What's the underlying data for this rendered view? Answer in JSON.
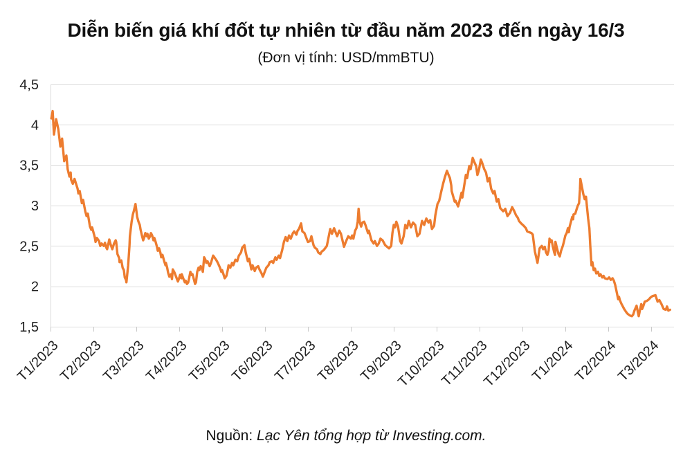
{
  "page": {
    "title": "Diễn biến giá khí đốt tự nhiên từ đầu năm 2023 đến ngày 16/3",
    "subtitle": "(Đơn vị tính: USD/mmBTU)",
    "source_prefix": "Nguồn: ",
    "source_text": "Lạc Yên tổng hợp từ Investing.com."
  },
  "chart_data": {
    "type": "line",
    "title": "Diễn biến giá khí đốt tự nhiên từ đầu năm 2023 đến ngày 16/3",
    "subtitle": "(Đơn vị tính: USD/mmBTU)",
    "unit": "USD/mmBTU",
    "xlabel": "",
    "ylabel": "",
    "x_unit": "months since Jan 2023 (0 = T1/2023, fractional = day within month)",
    "ylim": [
      1.5,
      4.5
    ],
    "xlim": [
      0,
      14.53
    ],
    "grid": true,
    "legend": "none",
    "line_color": "#ED7C2F",
    "grid_color": "#DCDCDC",
    "tick_color": "#C9C9C9",
    "text_color": "#1F1F1F",
    "x_ticks": [
      "T1/2023",
      "T2/2023",
      "T3/2023",
      "T4/2023",
      "T5/2023",
      "T6/2023",
      "T7/2023",
      "T8/2023",
      "T9/2023",
      "T10/2023",
      "T11/2023",
      "T12/2023",
      "T1/2024",
      "T2/2024",
      "T3/2024"
    ],
    "y_ticks": [
      {
        "value": 4.5,
        "label": "4,5"
      },
      {
        "value": 4.0,
        "label": "4"
      },
      {
        "value": 3.5,
        "label": "3,5"
      },
      {
        "value": 3.0,
        "label": "3"
      },
      {
        "value": 2.5,
        "label": "2,5"
      },
      {
        "value": 2.0,
        "label": "2"
      },
      {
        "value": 1.5,
        "label": "1,5"
      }
    ],
    "points": [
      [
        0.02,
        4.08
      ],
      [
        0.05,
        4.17
      ],
      [
        0.08,
        3.88
      ],
      [
        0.13,
        4.07
      ],
      [
        0.18,
        3.95
      ],
      [
        0.23,
        3.73
      ],
      [
        0.27,
        3.83
      ],
      [
        0.32,
        3.55
      ],
      [
        0.37,
        3.62
      ],
      [
        0.4,
        3.45
      ],
      [
        0.44,
        3.36
      ],
      [
        0.47,
        3.41
      ],
      [
        0.48,
        3.32
      ],
      [
        0.52,
        3.27
      ],
      [
        0.56,
        3.33
      ],
      [
        0.63,
        3.21
      ],
      [
        0.65,
        3.15
      ],
      [
        0.68,
        3.18
      ],
      [
        0.73,
        3.03
      ],
      [
        0.76,
        3.07
      ],
      [
        0.81,
        2.93
      ],
      [
        0.84,
        2.87
      ],
      [
        0.87,
        2.9
      ],
      [
        0.92,
        2.74
      ],
      [
        0.95,
        2.7
      ],
      [
        0.97,
        2.73
      ],
      [
        1.03,
        2.61
      ],
      [
        1.05,
        2.55
      ],
      [
        1.08,
        2.6
      ],
      [
        1.13,
        2.56
      ],
      [
        1.16,
        2.5
      ],
      [
        1.19,
        2.53
      ],
      [
        1.24,
        2.5
      ],
      [
        1.27,
        2.54
      ],
      [
        1.3,
        2.48
      ],
      [
        1.32,
        2.46
      ],
      [
        1.35,
        2.53
      ],
      [
        1.37,
        2.58
      ],
      [
        1.4,
        2.52
      ],
      [
        1.44,
        2.46
      ],
      [
        1.48,
        2.53
      ],
      [
        1.52,
        2.57
      ],
      [
        1.53,
        2.55
      ],
      [
        1.56,
        2.4
      ],
      [
        1.6,
        2.35
      ],
      [
        1.61,
        2.3
      ],
      [
        1.65,
        2.32
      ],
      [
        1.68,
        2.23
      ],
      [
        1.71,
        2.2
      ],
      [
        1.73,
        2.11
      ],
      [
        1.76,
        2.08
      ],
      [
        1.77,
        2.05
      ],
      [
        1.81,
        2.26
      ],
      [
        1.84,
        2.5
      ],
      [
        1.85,
        2.62
      ],
      [
        1.89,
        2.8
      ],
      [
        1.92,
        2.89
      ],
      [
        1.94,
        2.93
      ],
      [
        1.98,
        3.02
      ],
      [
        2.02,
        2.86
      ],
      [
        2.05,
        2.8
      ],
      [
        2.08,
        2.76
      ],
      [
        2.1,
        2.7
      ],
      [
        2.13,
        2.63
      ],
      [
        2.16,
        2.57
      ],
      [
        2.18,
        2.6
      ],
      [
        2.21,
        2.66
      ],
      [
        2.24,
        2.62
      ],
      [
        2.26,
        2.65
      ],
      [
        2.29,
        2.59
      ],
      [
        2.32,
        2.62
      ],
      [
        2.34,
        2.66
      ],
      [
        2.37,
        2.63
      ],
      [
        2.4,
        2.57
      ],
      [
        2.42,
        2.6
      ],
      [
        2.45,
        2.55
      ],
      [
        2.48,
        2.49
      ],
      [
        2.5,
        2.44
      ],
      [
        2.53,
        2.47
      ],
      [
        2.56,
        2.42
      ],
      [
        2.58,
        2.36
      ],
      [
        2.61,
        2.39
      ],
      [
        2.65,
        2.31
      ],
      [
        2.68,
        2.26
      ],
      [
        2.69,
        2.29
      ],
      [
        2.72,
        2.23
      ],
      [
        2.74,
        2.17
      ],
      [
        2.77,
        2.12
      ],
      [
        2.81,
        2.15
      ],
      [
        2.83,
        2.09
      ],
      [
        2.85,
        2.21
      ],
      [
        2.89,
        2.17
      ],
      [
        2.94,
        2.1
      ],
      [
        2.97,
        2.06
      ],
      [
        2.99,
        2.09
      ],
      [
        3.02,
        2.14
      ],
      [
        3.05,
        2.1
      ],
      [
        3.06,
        2.15
      ],
      [
        3.1,
        2.09
      ],
      [
        3.13,
        2.05
      ],
      [
        3.15,
        2.07
      ],
      [
        3.18,
        2.03
      ],
      [
        3.21,
        2.05
      ],
      [
        3.23,
        2.1
      ],
      [
        3.26,
        2.18
      ],
      [
        3.29,
        2.14
      ],
      [
        3.31,
        2.15
      ],
      [
        3.34,
        2.09
      ],
      [
        3.37,
        2.03
      ],
      [
        3.39,
        2.05
      ],
      [
        3.42,
        2.18
      ],
      [
        3.45,
        2.23
      ],
      [
        3.47,
        2.2
      ],
      [
        3.5,
        2.25
      ],
      [
        3.53,
        2.22
      ],
      [
        3.55,
        2.18
      ],
      [
        3.58,
        2.36
      ],
      [
        3.61,
        2.33
      ],
      [
        3.63,
        2.29
      ],
      [
        3.66,
        2.31
      ],
      [
        3.71,
        2.25
      ],
      [
        3.74,
        2.29
      ],
      [
        3.79,
        2.38
      ],
      [
        3.82,
        2.36
      ],
      [
        3.87,
        2.32
      ],
      [
        3.9,
        2.29
      ],
      [
        3.95,
        2.23
      ],
      [
        3.98,
        2.18
      ],
      [
        4.0,
        2.2
      ],
      [
        4.03,
        2.15
      ],
      [
        4.06,
        2.1
      ],
      [
        4.1,
        2.13
      ],
      [
        4.13,
        2.2
      ],
      [
        4.15,
        2.26
      ],
      [
        4.19,
        2.23
      ],
      [
        4.23,
        2.29
      ],
      [
        4.26,
        2.26
      ],
      [
        4.31,
        2.33
      ],
      [
        4.35,
        2.31
      ],
      [
        4.39,
        2.38
      ],
      [
        4.44,
        2.42
      ],
      [
        4.47,
        2.48
      ],
      [
        4.52,
        2.51
      ],
      [
        4.55,
        2.42
      ],
      [
        4.6,
        2.31
      ],
      [
        4.63,
        2.34
      ],
      [
        4.68,
        2.21
      ],
      [
        4.71,
        2.26
      ],
      [
        4.76,
        2.19
      ],
      [
        4.79,
        2.23
      ],
      [
        4.84,
        2.25
      ],
      [
        4.87,
        2.21
      ],
      [
        4.92,
        2.16
      ],
      [
        4.95,
        2.12
      ],
      [
        5.0,
        2.19
      ],
      [
        5.03,
        2.23
      ],
      [
        5.08,
        2.26
      ],
      [
        5.11,
        2.3
      ],
      [
        5.16,
        2.31
      ],
      [
        5.19,
        2.29
      ],
      [
        5.24,
        2.36
      ],
      [
        5.27,
        2.33
      ],
      [
        5.32,
        2.38
      ],
      [
        5.35,
        2.35
      ],
      [
        5.4,
        2.45
      ],
      [
        5.44,
        2.55
      ],
      [
        5.48,
        2.61
      ],
      [
        5.52,
        2.56
      ],
      [
        5.56,
        2.63
      ],
      [
        5.6,
        2.59
      ],
      [
        5.65,
        2.66
      ],
      [
        5.68,
        2.68
      ],
      [
        5.73,
        2.64
      ],
      [
        5.76,
        2.69
      ],
      [
        5.79,
        2.71
      ],
      [
        5.84,
        2.78
      ],
      [
        5.87,
        2.68
      ],
      [
        5.92,
        2.66
      ],
      [
        5.97,
        2.59
      ],
      [
        6.0,
        2.55
      ],
      [
        6.05,
        2.56
      ],
      [
        6.08,
        2.62
      ],
      [
        6.13,
        2.51
      ],
      [
        6.16,
        2.48
      ],
      [
        6.21,
        2.46
      ],
      [
        6.24,
        2.42
      ],
      [
        6.29,
        2.4
      ],
      [
        6.32,
        2.43
      ],
      [
        6.37,
        2.45
      ],
      [
        6.44,
        2.5
      ],
      [
        6.52,
        2.71
      ],
      [
        6.56,
        2.65
      ],
      [
        6.61,
        2.72
      ],
      [
        6.68,
        2.62
      ],
      [
        6.73,
        2.69
      ],
      [
        6.77,
        2.65
      ],
      [
        6.84,
        2.49
      ],
      [
        6.89,
        2.56
      ],
      [
        6.94,
        2.62
      ],
      [
        7.0,
        2.59
      ],
      [
        7.03,
        2.63
      ],
      [
        7.06,
        2.59
      ],
      [
        7.1,
        2.69
      ],
      [
        7.13,
        2.72
      ],
      [
        7.16,
        2.8
      ],
      [
        7.18,
        2.96
      ],
      [
        7.21,
        2.79
      ],
      [
        7.24,
        2.74
      ],
      [
        7.27,
        2.79
      ],
      [
        7.31,
        2.8
      ],
      [
        7.34,
        2.76
      ],
      [
        7.4,
        2.66
      ],
      [
        7.42,
        2.69
      ],
      [
        7.48,
        2.57
      ],
      [
        7.53,
        2.53
      ],
      [
        7.56,
        2.56
      ],
      [
        7.61,
        2.5
      ],
      [
        7.65,
        2.53
      ],
      [
        7.69,
        2.59
      ],
      [
        7.74,
        2.57
      ],
      [
        7.8,
        2.51
      ],
      [
        7.89,
        2.47
      ],
      [
        7.94,
        2.5
      ],
      [
        7.97,
        2.66
      ],
      [
        8.0,
        2.76
      ],
      [
        8.03,
        2.73
      ],
      [
        8.06,
        2.8
      ],
      [
        8.1,
        2.74
      ],
      [
        8.15,
        2.56
      ],
      [
        8.18,
        2.53
      ],
      [
        8.23,
        2.62
      ],
      [
        8.27,
        2.76
      ],
      [
        8.31,
        2.72
      ],
      [
        8.35,
        2.81
      ],
      [
        8.4,
        2.73
      ],
      [
        8.45,
        2.79
      ],
      [
        8.5,
        2.76
      ],
      [
        8.55,
        2.62
      ],
      [
        8.6,
        2.65
      ],
      [
        8.66,
        2.81
      ],
      [
        8.71,
        2.76
      ],
      [
        8.76,
        2.84
      ],
      [
        8.81,
        2.79
      ],
      [
        8.85,
        2.82
      ],
      [
        8.89,
        2.71
      ],
      [
        8.94,
        2.75
      ],
      [
        8.97,
        2.88
      ],
      [
        9.02,
        3.02
      ],
      [
        9.06,
        3.06
      ],
      [
        9.11,
        3.18
      ],
      [
        9.15,
        3.27
      ],
      [
        9.19,
        3.35
      ],
      [
        9.24,
        3.43
      ],
      [
        9.27,
        3.39
      ],
      [
        9.31,
        3.34
      ],
      [
        9.34,
        3.25
      ],
      [
        9.35,
        3.18
      ],
      [
        9.42,
        3.05
      ],
      [
        9.44,
        3.06
      ],
      [
        9.5,
        2.99
      ],
      [
        9.52,
        3.03
      ],
      [
        9.58,
        3.16
      ],
      [
        9.6,
        3.1
      ],
      [
        9.68,
        3.38
      ],
      [
        9.71,
        3.34
      ],
      [
        9.76,
        3.49
      ],
      [
        9.79,
        3.45
      ],
      [
        9.84,
        3.59
      ],
      [
        9.87,
        3.55
      ],
      [
        9.92,
        3.49
      ],
      [
        9.95,
        3.38
      ],
      [
        9.98,
        3.43
      ],
      [
        10.03,
        3.57
      ],
      [
        10.06,
        3.53
      ],
      [
        10.11,
        3.45
      ],
      [
        10.15,
        3.41
      ],
      [
        10.19,
        3.3
      ],
      [
        10.23,
        3.34
      ],
      [
        10.27,
        3.21
      ],
      [
        10.32,
        3.15
      ],
      [
        10.35,
        3.18
      ],
      [
        10.4,
        3.05
      ],
      [
        10.44,
        3.08
      ],
      [
        10.48,
        2.97
      ],
      [
        10.55,
        2.93
      ],
      [
        10.6,
        2.96
      ],
      [
        10.65,
        2.87
      ],
      [
        10.71,
        2.91
      ],
      [
        10.76,
        2.98
      ],
      [
        10.81,
        2.93
      ],
      [
        10.85,
        2.88
      ],
      [
        10.89,
        2.85
      ],
      [
        10.92,
        2.81
      ],
      [
        10.97,
        2.78
      ],
      [
        11.03,
        2.75
      ],
      [
        11.08,
        2.72
      ],
      [
        11.11,
        2.68
      ],
      [
        11.16,
        2.67
      ],
      [
        11.21,
        2.66
      ],
      [
        11.24,
        2.64
      ],
      [
        11.29,
        2.43
      ],
      [
        11.35,
        2.29
      ],
      [
        11.4,
        2.47
      ],
      [
        11.45,
        2.5
      ],
      [
        11.48,
        2.46
      ],
      [
        11.52,
        2.49
      ],
      [
        11.55,
        2.42
      ],
      [
        11.58,
        2.39
      ],
      [
        11.61,
        2.44
      ],
      [
        11.63,
        2.59
      ],
      [
        11.65,
        2.55
      ],
      [
        11.68,
        2.57
      ],
      [
        11.71,
        2.49
      ],
      [
        11.74,
        2.42
      ],
      [
        11.76,
        2.39
      ],
      [
        11.77,
        2.55
      ],
      [
        11.81,
        2.46
      ],
      [
        11.84,
        2.4
      ],
      [
        11.87,
        2.37
      ],
      [
        11.9,
        2.44
      ],
      [
        11.94,
        2.5
      ],
      [
        11.97,
        2.56
      ],
      [
        12.0,
        2.63
      ],
      [
        12.03,
        2.66
      ],
      [
        12.06,
        2.72
      ],
      [
        12.08,
        2.67
      ],
      [
        12.1,
        2.74
      ],
      [
        12.13,
        2.8
      ],
      [
        12.16,
        2.86
      ],
      [
        12.18,
        2.83
      ],
      [
        12.19,
        2.89
      ],
      [
        12.23,
        2.9
      ],
      [
        12.26,
        2.95
      ],
      [
        12.29,
        3.0
      ],
      [
        12.32,
        3.03
      ],
      [
        12.34,
        3.2
      ],
      [
        12.35,
        3.33
      ],
      [
        12.39,
        3.22
      ],
      [
        12.42,
        3.14
      ],
      [
        12.45,
        3.08
      ],
      [
        12.48,
        3.11
      ],
      [
        12.53,
        2.84
      ],
      [
        12.56,
        2.72
      ],
      [
        12.58,
        2.5
      ],
      [
        12.61,
        2.26
      ],
      [
        12.63,
        2.3
      ],
      [
        12.66,
        2.2
      ],
      [
        12.69,
        2.22
      ],
      [
        12.72,
        2.16
      ],
      [
        12.76,
        2.18
      ],
      [
        12.79,
        2.13
      ],
      [
        12.82,
        2.15
      ],
      [
        12.86,
        2.11
      ],
      [
        12.89,
        2.13
      ],
      [
        12.92,
        2.1
      ],
      [
        12.98,
        2.09
      ],
      [
        13.02,
        2.11
      ],
      [
        13.06,
        2.08
      ],
      [
        13.1,
        2.1
      ],
      [
        13.13,
        2.07
      ],
      [
        13.16,
        2.02
      ],
      [
        13.18,
        1.97
      ],
      [
        13.23,
        1.84
      ],
      [
        13.25,
        1.87
      ],
      [
        13.27,
        1.83
      ],
      [
        13.31,
        1.78
      ],
      [
        13.34,
        1.75
      ],
      [
        13.37,
        1.72
      ],
      [
        13.42,
        1.68
      ],
      [
        13.45,
        1.66
      ],
      [
        13.5,
        1.64
      ],
      [
        13.55,
        1.63
      ],
      [
        13.58,
        1.65
      ],
      [
        13.61,
        1.7
      ],
      [
        13.66,
        1.76
      ],
      [
        13.71,
        1.63
      ],
      [
        13.74,
        1.71
      ],
      [
        13.77,
        1.78
      ],
      [
        13.79,
        1.72
      ],
      [
        13.82,
        1.76
      ],
      [
        13.85,
        1.81
      ],
      [
        13.9,
        1.82
      ],
      [
        13.95,
        1.84
      ],
      [
        13.98,
        1.86
      ],
      [
        14.03,
        1.88
      ],
      [
        14.1,
        1.89
      ],
      [
        14.15,
        1.81
      ],
      [
        14.19,
        1.83
      ],
      [
        14.24,
        1.78
      ],
      [
        14.29,
        1.72
      ],
      [
        14.34,
        1.71
      ],
      [
        14.37,
        1.75
      ],
      [
        14.4,
        1.7
      ],
      [
        14.44,
        1.71
      ]
    ]
  }
}
